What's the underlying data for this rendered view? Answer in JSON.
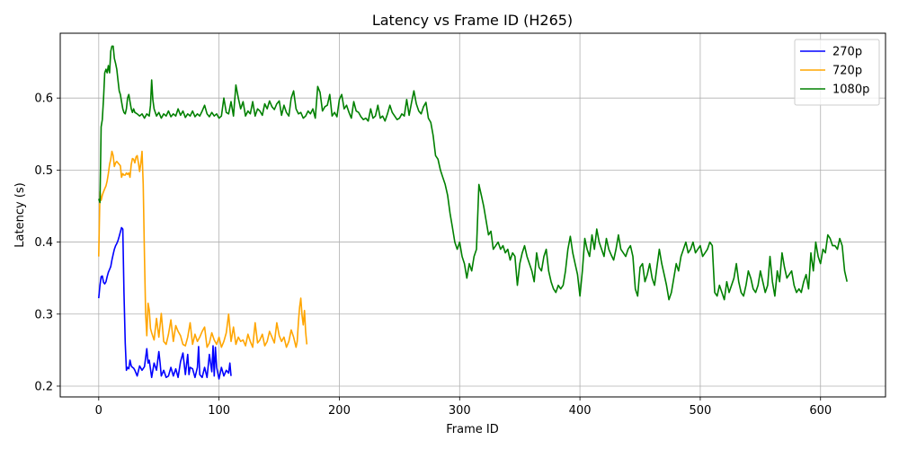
{
  "chart_data": {
    "type": "line",
    "title": "Latency vs Frame ID (H265)",
    "xlabel": "Frame ID",
    "ylabel": "Latency (s)",
    "xlim": [
      -32,
      654
    ],
    "ylim": [
      0.185,
      0.69
    ],
    "xticks": [
      0,
      100,
      200,
      300,
      400,
      500,
      600
    ],
    "yticks": [
      0.2,
      0.3,
      0.4,
      0.5,
      0.6
    ],
    "grid": true,
    "legend_position": "top-right",
    "series": [
      {
        "name": "270p",
        "color": "#0000ff",
        "x": [
          0,
          1,
          2,
          3,
          4,
          5,
          6,
          7,
          8,
          9,
          10,
          11,
          12,
          13,
          14,
          15,
          16,
          17,
          18,
          19,
          20,
          21,
          22,
          23,
          24,
          25,
          26,
          27,
          28,
          29,
          30,
          32,
          34,
          36,
          38,
          40,
          41,
          42,
          44,
          46,
          48,
          50,
          51,
          52,
          54,
          56,
          58,
          60,
          62,
          64,
          66,
          68,
          70,
          72,
          74,
          75,
          76,
          78,
          80,
          82,
          83,
          84,
          86,
          88,
          90,
          92,
          94,
          95,
          96,
          97,
          98,
          100,
          102,
          104,
          106,
          108,
          109,
          110
        ],
        "y": [
          0.322,
          0.34,
          0.352,
          0.353,
          0.344,
          0.342,
          0.345,
          0.352,
          0.358,
          0.362,
          0.366,
          0.375,
          0.383,
          0.39,
          0.395,
          0.398,
          0.402,
          0.408,
          0.414,
          0.42,
          0.418,
          0.33,
          0.26,
          0.222,
          0.226,
          0.224,
          0.236,
          0.228,
          0.226,
          0.225,
          0.222,
          0.214,
          0.228,
          0.222,
          0.227,
          0.252,
          0.232,
          0.236,
          0.212,
          0.232,
          0.222,
          0.248,
          0.232,
          0.214,
          0.222,
          0.212,
          0.214,
          0.226,
          0.214,
          0.224,
          0.212,
          0.234,
          0.246,
          0.216,
          0.244,
          0.216,
          0.226,
          0.224,
          0.212,
          0.226,
          0.255,
          0.216,
          0.212,
          0.226,
          0.212,
          0.244,
          0.22,
          0.256,
          0.214,
          0.254,
          0.226,
          0.21,
          0.226,
          0.214,
          0.222,
          0.218,
          0.232,
          0.214
        ]
      },
      {
        "name": "720p",
        "color": "#ffa500",
        "x": [
          0,
          1,
          2,
          3,
          4,
          5,
          6,
          7,
          8,
          9,
          10,
          11,
          12,
          13,
          14,
          15,
          16,
          17,
          18,
          19,
          20,
          21,
          22,
          23,
          24,
          25,
          26,
          27,
          28,
          29,
          30,
          31,
          32,
          33,
          34,
          35,
          36,
          37,
          38,
          39,
          40,
          41,
          42,
          43,
          44,
          46,
          48,
          50,
          52,
          54,
          56,
          58,
          60,
          62,
          64,
          66,
          68,
          70,
          72,
          74,
          76,
          78,
          80,
          82,
          84,
          86,
          88,
          90,
          92,
          94,
          96,
          98,
          100,
          102,
          104,
          106,
          108,
          110,
          112,
          114,
          116,
          118,
          120,
          122,
          124,
          126,
          128,
          130,
          132,
          134,
          136,
          138,
          140,
          142,
          144,
          146,
          148,
          150,
          152,
          154,
          156,
          158,
          160,
          162,
          164,
          165,
          166,
          167,
          168,
          169,
          170,
          171,
          172,
          173
        ],
        "y": [
          0.38,
          0.47,
          0.458,
          0.465,
          0.47,
          0.474,
          0.478,
          0.485,
          0.495,
          0.508,
          0.515,
          0.526,
          0.52,
          0.505,
          0.51,
          0.512,
          0.51,
          0.508,
          0.506,
          0.49,
          0.495,
          0.493,
          0.493,
          0.496,
          0.494,
          0.496,
          0.49,
          0.508,
          0.516,
          0.515,
          0.51,
          0.518,
          0.52,
          0.51,
          0.498,
          0.51,
          0.526,
          0.48,
          0.38,
          0.3,
          0.27,
          0.315,
          0.306,
          0.28,
          0.274,
          0.264,
          0.294,
          0.268,
          0.301,
          0.262,
          0.258,
          0.272,
          0.292,
          0.262,
          0.284,
          0.276,
          0.27,
          0.258,
          0.256,
          0.268,
          0.288,
          0.258,
          0.272,
          0.262,
          0.268,
          0.276,
          0.282,
          0.254,
          0.26,
          0.274,
          0.264,
          0.258,
          0.268,
          0.254,
          0.262,
          0.274,
          0.3,
          0.262,
          0.282,
          0.258,
          0.268,
          0.262,
          0.264,
          0.256,
          0.272,
          0.262,
          0.254,
          0.288,
          0.26,
          0.264,
          0.272,
          0.256,
          0.262,
          0.276,
          0.268,
          0.26,
          0.288,
          0.27,
          0.262,
          0.268,
          0.254,
          0.262,
          0.278,
          0.268,
          0.254,
          0.262,
          0.29,
          0.31,
          0.322,
          0.298,
          0.285,
          0.305,
          0.275,
          0.258
        ]
      },
      {
        "name": "1080p",
        "color": "#008000",
        "x": [
          0,
          1,
          2,
          3,
          4,
          5,
          6,
          7,
          8,
          9,
          10,
          11,
          12,
          13,
          14,
          15,
          16,
          17,
          18,
          19,
          20,
          21,
          22,
          23,
          24,
          25,
          26,
          27,
          28,
          29,
          30,
          32,
          34,
          36,
          38,
          40,
          42,
          43,
          44,
          45,
          46,
          48,
          50,
          52,
          54,
          56,
          58,
          60,
          62,
          64,
          66,
          68,
          70,
          72,
          74,
          76,
          78,
          80,
          82,
          84,
          86,
          88,
          90,
          92,
          94,
          96,
          98,
          100,
          102,
          104,
          106,
          108,
          110,
          112,
          114,
          116,
          118,
          120,
          122,
          124,
          126,
          128,
          130,
          132,
          134,
          136,
          138,
          140,
          142,
          144,
          146,
          148,
          150,
          152,
          154,
          156,
          158,
          160,
          162,
          164,
          166,
          168,
          170,
          172,
          174,
          176,
          178,
          180,
          182,
          184,
          186,
          188,
          190,
          192,
          194,
          196,
          198,
          200,
          202,
          204,
          206,
          208,
          210,
          212,
          214,
          216,
          218,
          220,
          222,
          224,
          226,
          228,
          230,
          232,
          234,
          236,
          238,
          240,
          242,
          244,
          246,
          248,
          250,
          252,
          254,
          256,
          258,
          260,
          262,
          264,
          266,
          268,
          270,
          272,
          274,
          276,
          278,
          280,
          282,
          284,
          286,
          288,
          290,
          292,
          294,
          296,
          298,
          300,
          302,
          304,
          306,
          308,
          310,
          312,
          314,
          316,
          318,
          320,
          322,
          324,
          326,
          328,
          330,
          332,
          334,
          336,
          338,
          340,
          342,
          344,
          346,
          348,
          350,
          352,
          354,
          356,
          358,
          360,
          362,
          364,
          366,
          368,
          370,
          372,
          374,
          376,
          378,
          380,
          382,
          384,
          386,
          388,
          390,
          392,
          394,
          396,
          398,
          400,
          402,
          404,
          406,
          408,
          410,
          412,
          414,
          416,
          418,
          420,
          422,
          424,
          426,
          428,
          430,
          432,
          434,
          436,
          438,
          440,
          442,
          444,
          446,
          448,
          450,
          452,
          454,
          456,
          458,
          460,
          462,
          464,
          466,
          468,
          470,
          472,
          474,
          476,
          478,
          480,
          482,
          484,
          486,
          488,
          490,
          492,
          494,
          496,
          498,
          500,
          502,
          504,
          506,
          508,
          510,
          512,
          514,
          516,
          518,
          520,
          522,
          524,
          526,
          528,
          530,
          532,
          534,
          536,
          538,
          540,
          542,
          544,
          546,
          548,
          550,
          552,
          554,
          556,
          558,
          560,
          562,
          564,
          566,
          568,
          570,
          572,
          574,
          576,
          578,
          580,
          582,
          584,
          586,
          588,
          590,
          592,
          594,
          596,
          598,
          600,
          602,
          604,
          606,
          608,
          610,
          612,
          614,
          616,
          618,
          620,
          622
        ],
        "y": [
          0.46,
          0.455,
          0.56,
          0.57,
          0.6,
          0.635,
          0.64,
          0.635,
          0.645,
          0.635,
          0.665,
          0.672,
          0.672,
          0.655,
          0.648,
          0.64,
          0.625,
          0.61,
          0.605,
          0.595,
          0.585,
          0.58,
          0.578,
          0.585,
          0.6,
          0.605,
          0.595,
          0.585,
          0.58,
          0.585,
          0.58,
          0.578,
          0.575,
          0.578,
          0.572,
          0.578,
          0.575,
          0.59,
          0.625,
          0.598,
          0.585,
          0.575,
          0.58,
          0.572,
          0.578,
          0.575,
          0.582,
          0.574,
          0.578,
          0.575,
          0.585,
          0.576,
          0.582,
          0.573,
          0.578,
          0.575,
          0.582,
          0.574,
          0.578,
          0.575,
          0.582,
          0.59,
          0.578,
          0.574,
          0.58,
          0.575,
          0.578,
          0.572,
          0.575,
          0.6,
          0.58,
          0.578,
          0.595,
          0.575,
          0.618,
          0.6,
          0.585,
          0.595,
          0.575,
          0.582,
          0.578,
          0.595,
          0.575,
          0.585,
          0.582,
          0.576,
          0.592,
          0.585,
          0.596,
          0.588,
          0.584,
          0.592,
          0.596,
          0.576,
          0.59,
          0.58,
          0.575,
          0.6,
          0.61,
          0.585,
          0.578,
          0.58,
          0.572,
          0.575,
          0.582,
          0.578,
          0.585,
          0.572,
          0.616,
          0.608,
          0.582,
          0.588,
          0.59,
          0.605,
          0.575,
          0.58,
          0.574,
          0.598,
          0.605,
          0.585,
          0.59,
          0.58,
          0.572,
          0.595,
          0.582,
          0.58,
          0.574,
          0.57,
          0.572,
          0.568,
          0.585,
          0.572,
          0.575,
          0.59,
          0.572,
          0.575,
          0.568,
          0.578,
          0.59,
          0.58,
          0.575,
          0.57,
          0.572,
          0.578,
          0.575,
          0.598,
          0.576,
          0.594,
          0.61,
          0.592,
          0.582,
          0.578,
          0.588,
          0.594,
          0.572,
          0.566,
          0.548,
          0.52,
          0.515,
          0.5,
          0.49,
          0.48,
          0.465,
          0.44,
          0.42,
          0.4,
          0.39,
          0.4,
          0.38,
          0.37,
          0.35,
          0.37,
          0.36,
          0.38,
          0.39,
          0.48,
          0.465,
          0.45,
          0.43,
          0.41,
          0.415,
          0.39,
          0.395,
          0.4,
          0.39,
          0.395,
          0.385,
          0.39,
          0.375,
          0.385,
          0.38,
          0.34,
          0.37,
          0.385,
          0.395,
          0.38,
          0.37,
          0.36,
          0.345,
          0.385,
          0.365,
          0.36,
          0.38,
          0.39,
          0.36,
          0.345,
          0.335,
          0.33,
          0.34,
          0.335,
          0.34,
          0.36,
          0.39,
          0.408,
          0.385,
          0.37,
          0.355,
          0.325,
          0.36,
          0.405,
          0.39,
          0.38,
          0.41,
          0.39,
          0.418,
          0.4,
          0.39,
          0.38,
          0.405,
          0.39,
          0.382,
          0.375,
          0.39,
          0.41,
          0.39,
          0.385,
          0.38,
          0.39,
          0.395,
          0.38,
          0.335,
          0.325,
          0.365,
          0.37,
          0.345,
          0.355,
          0.37,
          0.35,
          0.34,
          0.365,
          0.39,
          0.37,
          0.355,
          0.34,
          0.32,
          0.33,
          0.35,
          0.37,
          0.36,
          0.38,
          0.39,
          0.4,
          0.385,
          0.39,
          0.4,
          0.385,
          0.39,
          0.395,
          0.38,
          0.385,
          0.39,
          0.4,
          0.395,
          0.33,
          0.325,
          0.34,
          0.33,
          0.32,
          0.345,
          0.33,
          0.34,
          0.35,
          0.37,
          0.345,
          0.33,
          0.325,
          0.34,
          0.36,
          0.35,
          0.335,
          0.33,
          0.34,
          0.36,
          0.345,
          0.33,
          0.34,
          0.38,
          0.345,
          0.325,
          0.36,
          0.345,
          0.385,
          0.365,
          0.35,
          0.355,
          0.36,
          0.34,
          0.33,
          0.335,
          0.33,
          0.345,
          0.355,
          0.335,
          0.385,
          0.36,
          0.4,
          0.38,
          0.37,
          0.39,
          0.385,
          0.41,
          0.405,
          0.395,
          0.395,
          0.39,
          0.405,
          0.395,
          0.36,
          0.345
        ]
      }
    ]
  }
}
